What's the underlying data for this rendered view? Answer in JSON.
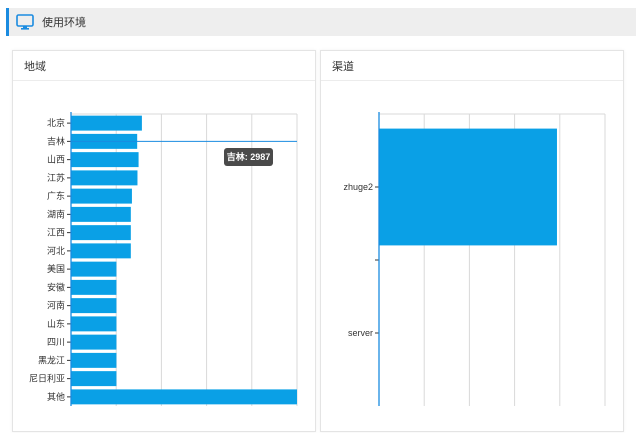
{
  "header": {
    "title": "使用环境",
    "icon": "monitor-icon"
  },
  "panels": {
    "region_title": "地域",
    "channel_title": "渠道"
  },
  "colors": {
    "bar": "#0aa0e6",
    "accent": "#1a8be0",
    "tooltip_bg": "#4a4a4a"
  },
  "tooltip": {
    "text": "吉林: 2987"
  },
  "chart_data": [
    {
      "type": "bar",
      "orientation": "horizontal",
      "title": "地域",
      "categories": [
        "北京",
        "吉林",
        "山西",
        "江苏",
        "广东",
        "湖南",
        "江西",
        "河北",
        "美国",
        "安徽",
        "河南",
        "山东",
        "四川",
        "黑龙江",
        "尼日利亚",
        "其他"
      ],
      "values": [
        3200,
        2987,
        3050,
        3000,
        2750,
        2700,
        2700,
        2700,
        2050,
        2050,
        2050,
        2050,
        2050,
        2050,
        2050,
        10200
      ],
      "xlim": [
        0,
        10200
      ],
      "grid": true
    },
    {
      "type": "bar",
      "orientation": "horizontal",
      "title": "渠道",
      "categories": [
        "zhuge2",
        "server"
      ],
      "values": [
        3150,
        0
      ],
      "xlim": [
        0,
        4000
      ],
      "grid": true
    }
  ]
}
